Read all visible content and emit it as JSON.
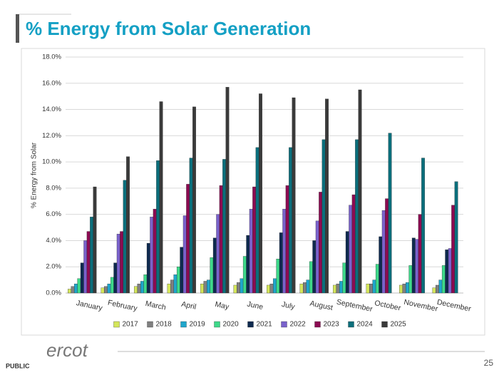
{
  "chart_data": {
    "type": "bar",
    "title": "% Energy from Solar Generation",
    "y_label": "% Energy from Solar",
    "categories": [
      "January",
      "February",
      "March",
      "April",
      "May",
      "June",
      "July",
      "August",
      "September",
      "October",
      "November",
      "December"
    ],
    "series": [
      {
        "name": "2017",
        "color": "#d4e65a",
        "values": [
          0.3,
          0.4,
          0.5,
          0.7,
          0.7,
          0.6,
          0.6,
          0.7,
          0.6,
          0.7,
          0.6,
          0.4
        ]
      },
      {
        "name": "2018",
        "color": "#808080",
        "values": [
          0.5,
          0.5,
          0.7,
          1.0,
          0.9,
          0.8,
          0.7,
          0.8,
          0.7,
          0.7,
          0.7,
          0.6
        ]
      },
      {
        "name": "2019",
        "color": "#1fa6cc",
        "values": [
          0.7,
          0.7,
          0.9,
          1.4,
          1.0,
          1.1,
          1.1,
          1.0,
          0.9,
          1.0,
          0.8,
          1.0
        ]
      },
      {
        "name": "2020",
        "color": "#3ed98a",
        "values": [
          1.1,
          1.2,
          1.4,
          2.0,
          2.7,
          2.8,
          2.6,
          2.4,
          2.3,
          2.2,
          2.1,
          2.1
        ]
      },
      {
        "name": "2021",
        "color": "#0e2a4f",
        "values": [
          2.3,
          2.3,
          3.8,
          3.5,
          4.2,
          4.4,
          4.6,
          4.0,
          4.7,
          4.3,
          4.2,
          3.3
        ]
      },
      {
        "name": "2022",
        "color": "#7a62cc",
        "values": [
          4.0,
          4.5,
          5.8,
          5.9,
          6.0,
          6.4,
          6.4,
          5.5,
          6.7,
          6.3,
          4.1,
          3.4
        ]
      },
      {
        "name": "2023",
        "color": "#8c0b52",
        "values": [
          4.7,
          4.7,
          6.4,
          8.3,
          8.2,
          8.1,
          8.2,
          7.7,
          7.5,
          7.2,
          6.0,
          6.7
        ]
      },
      {
        "name": "2024",
        "color": "#0b6f7c",
        "values": [
          5.8,
          8.6,
          10.1,
          10.3,
          10.2,
          11.1,
          11.1,
          11.7,
          11.7,
          12.2,
          10.3,
          8.5
        ]
      },
      {
        "name": "2025",
        "color": "#3a3a3a",
        "values": [
          8.1,
          10.4,
          14.6,
          14.2,
          15.7,
          15.2,
          14.9,
          14.8,
          15.5,
          null,
          null,
          null
        ]
      }
    ],
    "ylim": [
      0,
      18
    ],
    "yticks": [
      {
        "value": 0,
        "label": "0.0%"
      },
      {
        "value": 2,
        "label": "2.0%"
      },
      {
        "value": 4,
        "label": "4.0%"
      },
      {
        "value": 6,
        "label": "6.0%"
      },
      {
        "value": 8,
        "label": "8.0%"
      },
      {
        "value": 10,
        "label": "10.0%"
      },
      {
        "value": 12,
        "label": "12.0%"
      },
      {
        "value": 14,
        "label": "14.0%"
      },
      {
        "value": 16,
        "label": "16.0%"
      },
      {
        "value": 18,
        "label": "18.0%"
      }
    ],
    "grid": true,
    "legend": "bottom"
  },
  "slide": {
    "logo": "ercot",
    "classification": "PUBLIC",
    "page_number": 25
  }
}
